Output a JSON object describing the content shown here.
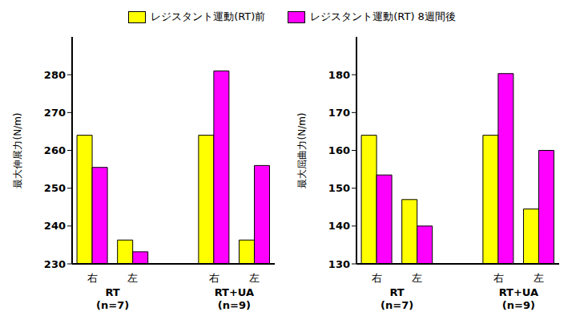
{
  "chart_data": [
    {
      "type": "bar",
      "y_label": "最大伸展力(N/m)",
      "categories": [
        "右",
        "左",
        null,
        "右",
        "左"
      ],
      "groups": [
        {
          "label": "RT",
          "sublabel": "(n=7)",
          "categories": [
            0,
            1
          ]
        },
        {
          "label": "RT+UA",
          "sublabel": "(n=9)",
          "categories": [
            3,
            4
          ]
        }
      ],
      "series": [
        {
          "name": "レジスタント運動(RT)前",
          "color": "#ffff00",
          "values": [
            264,
            236.3,
            null,
            264,
            236.3
          ]
        },
        {
          "name": "レジスタント運動(RT) 8週間後",
          "color": "#ff00ff",
          "values": [
            255.5,
            233.2,
            null,
            281,
            256
          ]
        }
      ],
      "ylim": [
        230,
        290
      ],
      "yticks": [
        230,
        240,
        250,
        260,
        270,
        280
      ],
      "legend": "top"
    },
    {
      "type": "bar",
      "y_label": "最大屈曲力(N/m)",
      "categories": [
        "右",
        "左",
        null,
        "右",
        "左"
      ],
      "groups": [
        {
          "label": "RT",
          "sublabel": "(n=7)",
          "categories": [
            0,
            1
          ]
        },
        {
          "label": "RT+UA",
          "sublabel": "(n=9)",
          "categories": [
            3,
            4
          ]
        }
      ],
      "series": [
        {
          "name": "レジスタント運動(RT)前",
          "color": "#ffff00",
          "values": [
            164,
            147,
            null,
            164,
            144.5
          ]
        },
        {
          "name": "レジスタント運動(RT) 8週間後",
          "color": "#ff00ff",
          "values": [
            153.5,
            140,
            null,
            180.3,
            160
          ]
        }
      ],
      "ylim": [
        130,
        190
      ],
      "yticks": [
        130,
        140,
        150,
        160,
        170,
        180
      ],
      "legend": "top"
    }
  ]
}
